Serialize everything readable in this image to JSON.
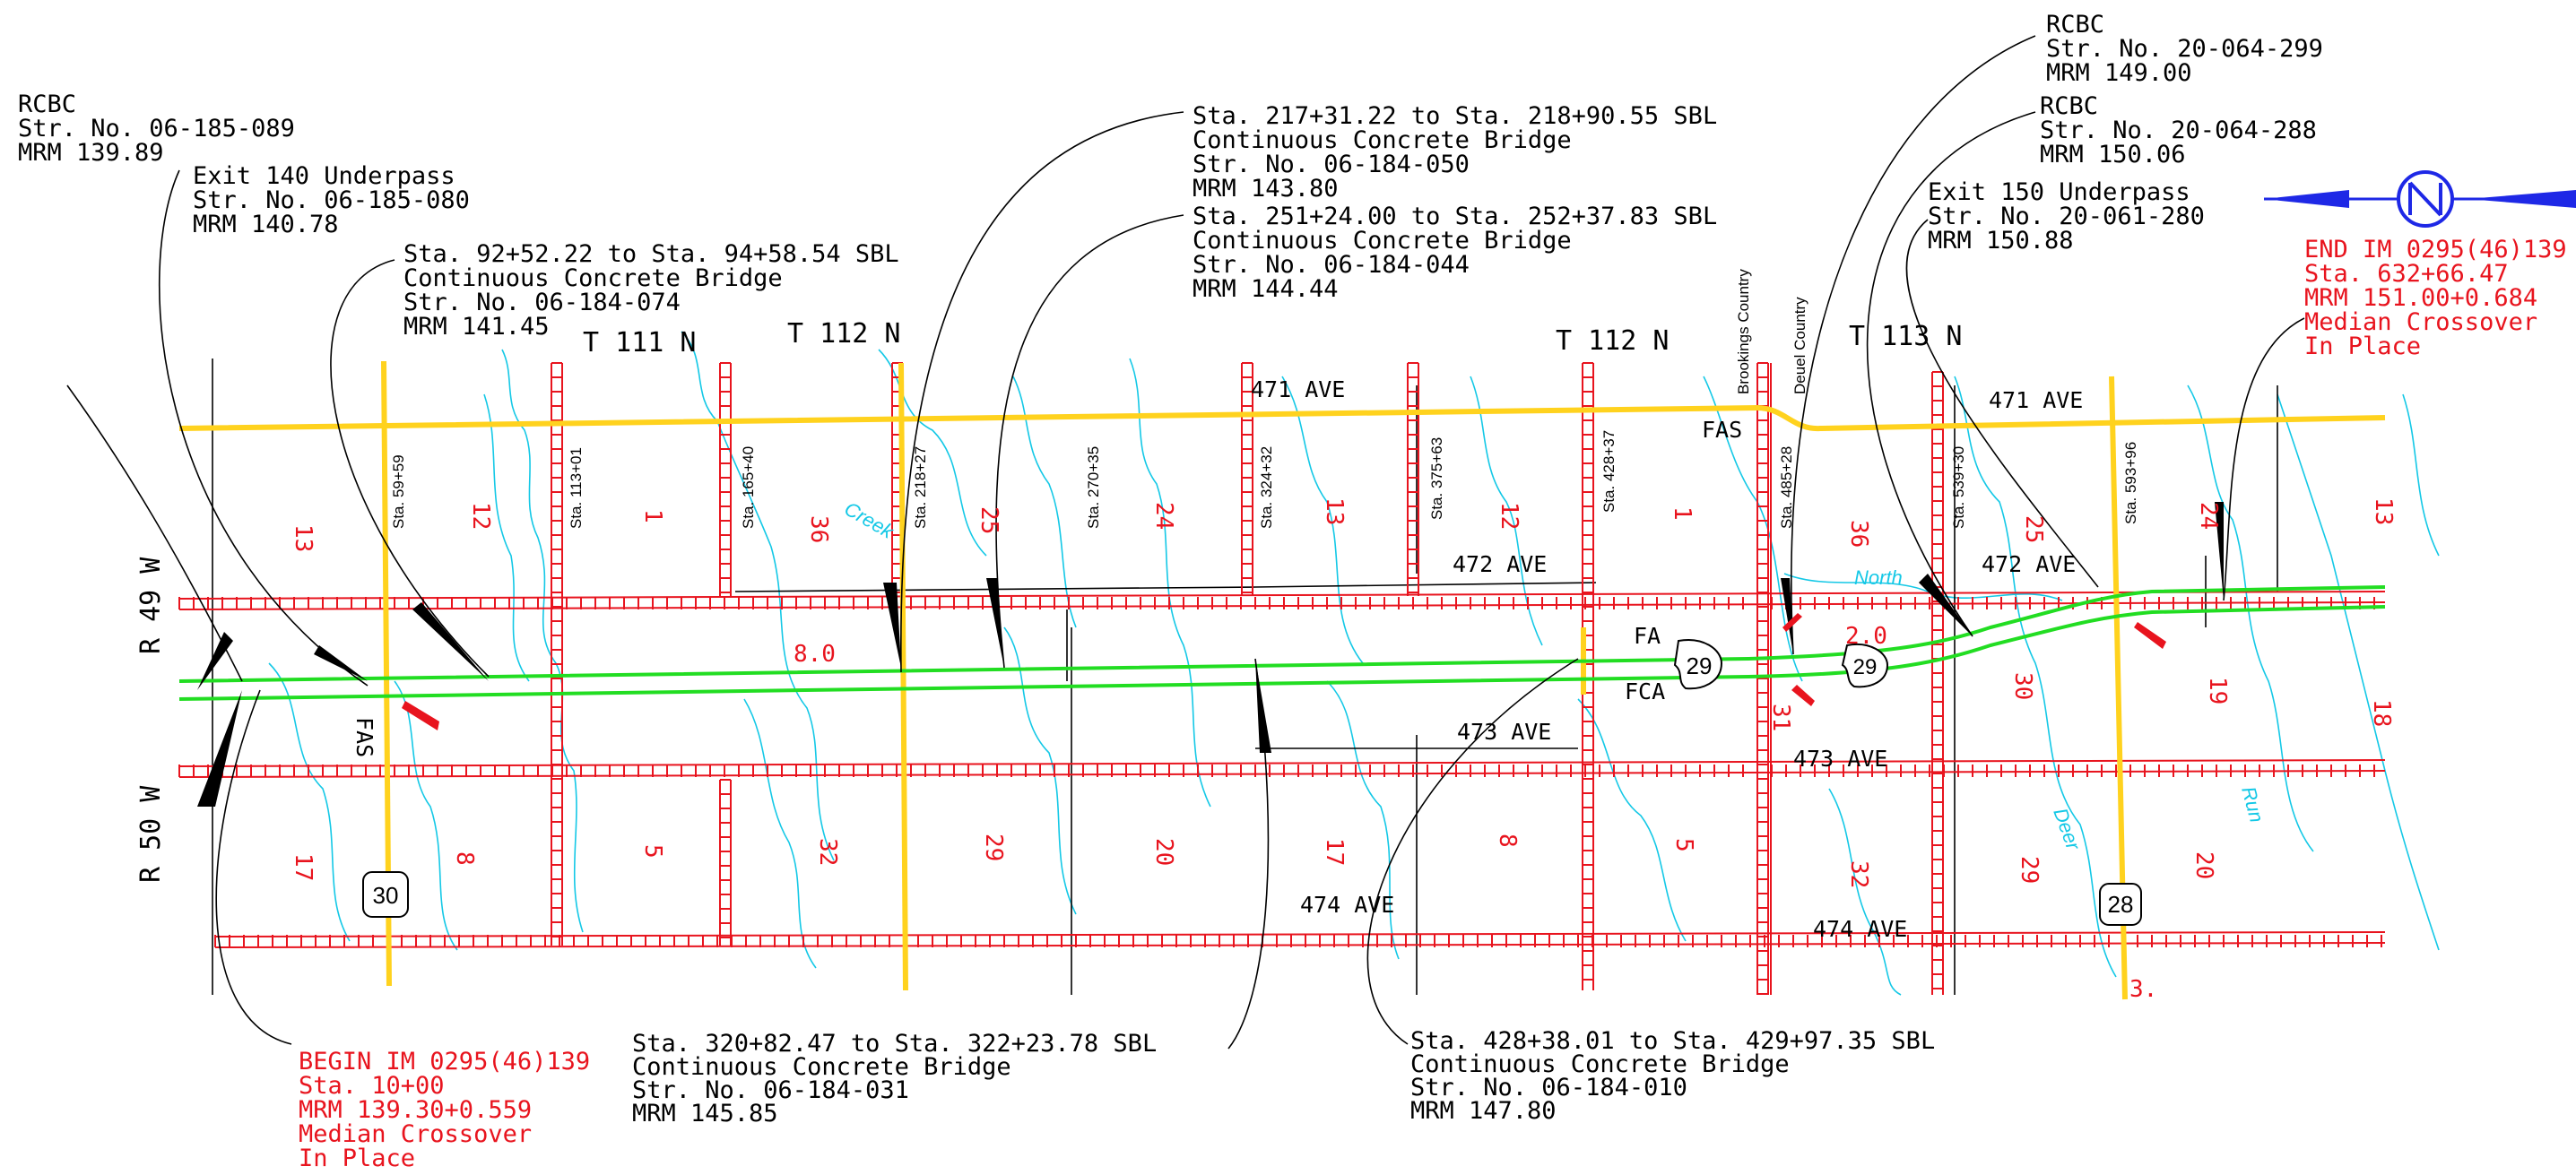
{
  "callouts_top_left": [
    {
      "lines": [
        "RCBC",
        "Str. No. 06-185-089",
        "MRM 139.89"
      ]
    },
    {
      "lines": [
        "Exit 140 Underpass",
        "Str. No. 06-185-080",
        "MRM 140.78"
      ]
    },
    {
      "lines": [
        "Sta. 92+52.22 to Sta. 94+58.54 SBL",
        "Continuous Concrete Bridge",
        "Str. No. 06-184-074",
        "MRM 141.45"
      ]
    },
    {
      "lines": [
        "Sta. 217+31.22 to Sta. 218+90.55 SBL",
        "Continuous Concrete Bridge",
        "Str. No. 06-184-050",
        "MRM 143.80"
      ]
    },
    {
      "lines": [
        "Sta. 251+24.00 to Sta. 252+37.83 SBL",
        "Continuous Concrete Bridge",
        "Str. No. 06-184-044",
        "MRM 144.44"
      ]
    }
  ],
  "callouts_top_right": [
    {
      "lines": [
        "RCBC",
        "Str. No. 20-064-299",
        "MRM 149.00"
      ]
    },
    {
      "lines": [
        "RCBC",
        "Str. No. 20-064-288",
        "MRM 150.06"
      ]
    },
    {
      "lines": [
        "Exit 150 Underpass",
        "Str. No. 20-061-280",
        "MRM 150.88"
      ]
    }
  ],
  "callouts_bottom": [
    {
      "lines": [
        "Sta. 320+82.47 to Sta. 322+23.78 SBL",
        "Continuous Concrete Bridge",
        "Str. No. 06-184-031",
        "MRM 145.85"
      ]
    },
    {
      "lines": [
        "Sta. 428+38.01 to Sta. 429+97.35 SBL",
        "Continuous Concrete Bridge",
        "Str. No. 06-184-010",
        "MRM 147.80"
      ]
    }
  ],
  "begin_note": {
    "lines": [
      "BEGIN IM 0295(46)139",
      "Sta. 10+00",
      "MRM 139.30+0.559",
      "Median Crossover",
      "In Place"
    ]
  },
  "end_note": {
    "lines": [
      "END IM 0295(46)139",
      "Sta. 632+66.47",
      "MRM 151.00+0.684",
      "Median Crossover",
      "In Place"
    ]
  },
  "stations": [
    "Sta. 59+59",
    "Sta. 113+01",
    "Sta. 165+40",
    "Sta. 218+27",
    "Sta. 270+35",
    "Sta. 324+32",
    "Sta. 375+63",
    "Sta. 428+37",
    "Sta. 485+28",
    "Sta. 539+30",
    "Sta. 593+96"
  ],
  "counties": [
    "Brookings Country",
    "Deuel Country"
  ],
  "avenues": {
    "a471_left": "471 AVE",
    "a471_right": "471 AVE",
    "a472_mid": "472 AVE",
    "a472_right": "472 AVE",
    "a473_mid": "473 AVE",
    "a473_right": "473 AVE",
    "a474_mid": "474 AVE",
    "a474_right": "474 AVE"
  },
  "townships": {
    "t111": "T 111 N",
    "t112a": "T 112 N",
    "t112b": "T 112 N",
    "t113": "T 113 N"
  },
  "ranges": {
    "r49": "R 49 W",
    "r50": "R 50 W"
  },
  "road_class": {
    "fas_left": "FAS",
    "fas_right": "FAS",
    "fa": "FA",
    "fca": "FCA"
  },
  "route_shields": {
    "s30": "30",
    "s29a": "29",
    "s29b": "29",
    "s28": "28"
  },
  "distances": {
    "d8": "8.0",
    "d2": "2.0"
  },
  "sections_top": [
    "13",
    "12",
    "1",
    "36",
    "25",
    "24",
    "13",
    "12",
    "1",
    "36",
    "25",
    "24",
    "13"
  ],
  "sections_bottom": [
    "17",
    "8",
    "5",
    "32",
    "29",
    "20",
    "17",
    "8",
    "5",
    "32",
    "29",
    "20",
    "18"
  ],
  "section_misc": {
    "s30": "30",
    "s31": "31",
    "s19": "19"
  },
  "water": {
    "creek": "Creek",
    "north": "North",
    "deer": "Deer",
    "run": "Run"
  },
  "stub": "3.",
  "colors": {
    "interstate": "#22dd22",
    "state_route": "#ffd21e",
    "county_road": "#e8141e",
    "water": "#14c8e6",
    "notes_red": "#e8141e",
    "north_arrow": "#1e28e6"
  }
}
